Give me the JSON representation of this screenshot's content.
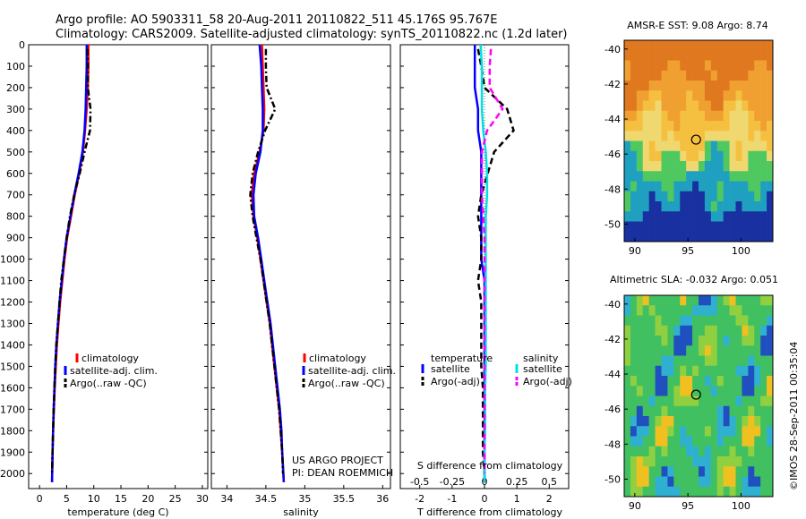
{
  "header": {
    "line1": "Argo profile: AO 5903311_58 20-Aug-2011 20110822_511 45.176S 95.767E",
    "line2": "Climatology: CARS2009. Satellite-adjusted climatology: synTS_20110822.nc (1.2d later)"
  },
  "colors": {
    "climatology": "#ff0000",
    "satellite_adj": "#0000ff",
    "argo": "#000000",
    "sal_satellite": "#00e0e0",
    "sal_argo": "#ff00ff"
  },
  "legend": {
    "climatology": "climatology",
    "satellite_adj": "satellite-adj. clim.",
    "argo": "Argo(..raw -QC)",
    "temp_title": "temperature",
    "sal_title": "salinity",
    "sat": "satellite",
    "argo_adj": "Argo(-adj)"
  },
  "annotations": {
    "project": "US ARGO PROJECT",
    "pi": "PI: DEAN ROEMMICH",
    "s_diff": "S difference from climatology",
    "copyright": "©IMOS 28-Sep-2011 00:35:04"
  },
  "chart_data": [
    {
      "type": "line",
      "id": "temperature",
      "xlabel": "temperature (deg C)",
      "ylabel": "",
      "xlim": [
        -2,
        31
      ],
      "ylim": [
        2070,
        0
      ],
      "xticks": [
        0,
        5,
        10,
        15,
        20,
        25,
        30
      ],
      "yticks": [
        0,
        100,
        200,
        300,
        400,
        500,
        600,
        700,
        800,
        900,
        1000,
        1100,
        1200,
        1300,
        1400,
        1500,
        1600,
        1700,
        1800,
        1900,
        2000
      ],
      "series": [
        {
          "name": "climatology",
          "color": "#ff0000",
          "dash": "solid",
          "x": [
            9.0,
            9.0,
            8.9,
            8.7,
            8.4,
            8.0,
            7.3,
            6.5,
            5.8,
            5.1,
            4.6,
            4.2,
            3.8,
            3.5,
            3.2,
            3.0,
            2.8,
            2.65,
            2.5,
            2.4,
            2.3
          ],
          "y": [
            0,
            100,
            200,
            300,
            400,
            500,
            600,
            700,
            800,
            900,
            1000,
            1100,
            1200,
            1300,
            1400,
            1500,
            1600,
            1700,
            1800,
            1900,
            2040
          ]
        },
        {
          "name": "satellite-adj. clim.",
          "color": "#0000ff",
          "dash": "solid",
          "x": [
            8.7,
            8.7,
            8.6,
            8.5,
            8.3,
            7.9,
            7.2,
            6.4,
            5.7,
            5.0,
            4.5,
            4.1,
            3.7,
            3.4,
            3.1,
            2.9,
            2.75,
            2.6,
            2.5,
            2.4,
            2.3
          ],
          "y": [
            0,
            100,
            200,
            300,
            400,
            500,
            600,
            700,
            800,
            900,
            1000,
            1100,
            1200,
            1300,
            1400,
            1500,
            1600,
            1700,
            1800,
            1900,
            2040
          ]
        },
        {
          "name": "Argo(..raw -QC)",
          "color": "#000000",
          "dash": "dashdot",
          "x": [
            8.8,
            8.9,
            8.9,
            9.4,
            9.3,
            8.3,
            7.4,
            6.4,
            5.6,
            5.0,
            4.5,
            4.0,
            3.7,
            3.4,
            3.1,
            2.9,
            2.75,
            2.6,
            2.5,
            2.4,
            2.3
          ],
          "y": [
            20,
            100,
            200,
            300,
            400,
            500,
            600,
            700,
            800,
            900,
            1000,
            1100,
            1200,
            1300,
            1400,
            1500,
            1600,
            1700,
            1800,
            1900,
            2000
          ]
        }
      ]
    },
    {
      "type": "line",
      "id": "salinity",
      "xlabel": "salinity",
      "xlim": [
        33.8,
        36.1
      ],
      "ylim": [
        2070,
        0
      ],
      "xticks": [
        34,
        34.5,
        35,
        35.5,
        36
      ],
      "series": [
        {
          "name": "climatology",
          "color": "#ff0000",
          "dash": "solid",
          "x": [
            34.45,
            34.46,
            34.47,
            34.48,
            34.47,
            34.42,
            34.35,
            34.32,
            34.34,
            34.39,
            34.43,
            34.47,
            34.51,
            34.55,
            34.58,
            34.61,
            34.64,
            34.67,
            34.69,
            34.71,
            34.73
          ],
          "y": [
            0,
            100,
            200,
            300,
            400,
            500,
            600,
            700,
            800,
            900,
            1000,
            1100,
            1200,
            1300,
            1400,
            1500,
            1600,
            1700,
            1800,
            1900,
            2040
          ]
        },
        {
          "name": "satellite-adj. clim.",
          "color": "#0000ff",
          "dash": "solid",
          "x": [
            34.42,
            34.44,
            34.45,
            34.46,
            34.46,
            34.43,
            34.37,
            34.34,
            34.35,
            34.4,
            34.44,
            34.48,
            34.52,
            34.56,
            34.59,
            34.62,
            34.65,
            34.68,
            34.7,
            34.71,
            34.73
          ],
          "y": [
            0,
            100,
            200,
            300,
            400,
            500,
            600,
            700,
            800,
            900,
            1000,
            1100,
            1200,
            1300,
            1400,
            1500,
            1600,
            1700,
            1800,
            1900,
            2040
          ]
        },
        {
          "name": "Argo(..raw -QC)",
          "color": "#000000",
          "dash": "dashdot",
          "x": [
            34.5,
            34.5,
            34.51,
            34.62,
            34.49,
            34.4,
            34.33,
            34.3,
            34.33,
            34.38,
            34.43,
            34.47,
            34.51,
            34.55,
            34.58,
            34.61,
            34.64,
            34.67,
            34.69,
            34.71,
            34.72
          ],
          "y": [
            20,
            100,
            200,
            300,
            400,
            500,
            600,
            700,
            800,
            900,
            1000,
            1100,
            1200,
            1300,
            1400,
            1500,
            1600,
            1700,
            1800,
            1900,
            2000
          ]
        }
      ]
    },
    {
      "type": "line",
      "id": "difference",
      "xlabel": "T difference from climatology",
      "xlim": [
        -2.6,
        2.6
      ],
      "ylim": [
        2070,
        0
      ],
      "xticks": [
        -2,
        -1,
        0,
        1,
        2
      ],
      "xticks_top": [
        -0.5,
        -0.25,
        0,
        0.25,
        0.5
      ],
      "series": [
        {
          "name": "temperature satellite",
          "color": "#0000ff",
          "dash": "solid",
          "x": [
            -0.3,
            -0.3,
            -0.3,
            -0.2,
            -0.2,
            -0.1,
            -0.1,
            -0.1,
            -0.1,
            -0.1,
            -0.1,
            0,
            0,
            0,
            0,
            0,
            0,
            0,
            0,
            0,
            0
          ],
          "y": [
            0,
            100,
            200,
            300,
            400,
            500,
            600,
            700,
            800,
            900,
            1000,
            1100,
            1200,
            1300,
            1400,
            1500,
            1600,
            1700,
            1800,
            1900,
            2040
          ]
        },
        {
          "name": "temperature Argo(-adj)",
          "color": "#000000",
          "dash": "dashed",
          "x": [
            -0.2,
            -0.1,
            0,
            0.7,
            0.9,
            0.3,
            0.1,
            -0.1,
            -0.2,
            -0.1,
            -0.1,
            -0.2,
            -0.1,
            -0.1,
            -0.1,
            -0.1,
            -0.05,
            -0.05,
            -0.05,
            -0.05,
            0
          ],
          "y": [
            20,
            100,
            200,
            300,
            400,
            500,
            600,
            700,
            800,
            900,
            1000,
            1100,
            1200,
            1300,
            1400,
            1500,
            1600,
            1700,
            1800,
            1900,
            2000
          ]
        },
        {
          "name": "salinity satellite",
          "color": "#00e0e0",
          "dash": "solid",
          "x": [
            -0.03,
            -0.02,
            -0.02,
            -0.02,
            -0.01,
            0.01,
            0.02,
            0.02,
            0.01,
            0.01,
            0.01,
            0.01,
            0.01,
            0.01,
            0.01,
            0.01,
            0.005,
            0.005,
            0.005,
            0,
            0
          ],
          "y": [
            0,
            100,
            200,
            300,
            400,
            500,
            600,
            700,
            800,
            900,
            1000,
            1100,
            1200,
            1300,
            1400,
            1500,
            1600,
            1700,
            1800,
            1900,
            2040
          ]
        },
        {
          "name": "salinity Argo(-adj)",
          "color": "#ff00ff",
          "dash": "dashed",
          "x": [
            0.05,
            0.04,
            0.04,
            0.14,
            0.02,
            -0.02,
            -0.02,
            -0.02,
            -0.01,
            0,
            0,
            0,
            0,
            0,
            0,
            0,
            0,
            0,
            0,
            0,
            0
          ],
          "y": [
            20,
            100,
            200,
            300,
            400,
            500,
            600,
            700,
            800,
            900,
            1000,
            1100,
            1200,
            1300,
            1400,
            1500,
            1600,
            1700,
            1800,
            1900,
            2000
          ]
        }
      ]
    },
    {
      "type": "heatmap",
      "id": "sst_map",
      "title": "AMSR-E SST: 9.08 Argo: 8.74",
      "xlim": [
        89,
        103
      ],
      "ylim": [
        -51,
        -39.5
      ],
      "xticks": [
        90,
        95,
        100
      ],
      "yticks": [
        -40,
        -42,
        -44,
        -46,
        -48,
        -50
      ],
      "marker": {
        "lon": 95.767,
        "lat": -45.176
      }
    },
    {
      "type": "heatmap",
      "id": "sla_map",
      "title": "Altimetric SLA: -0.032 Argo: 0.051",
      "xlim": [
        89,
        103
      ],
      "ylim": [
        -51,
        -39.5
      ],
      "xticks": [
        90,
        95,
        100
      ],
      "yticks": [
        -40,
        -42,
        -44,
        -46,
        -48,
        -50
      ],
      "marker": {
        "lon": 95.767,
        "lat": -45.176
      }
    }
  ]
}
